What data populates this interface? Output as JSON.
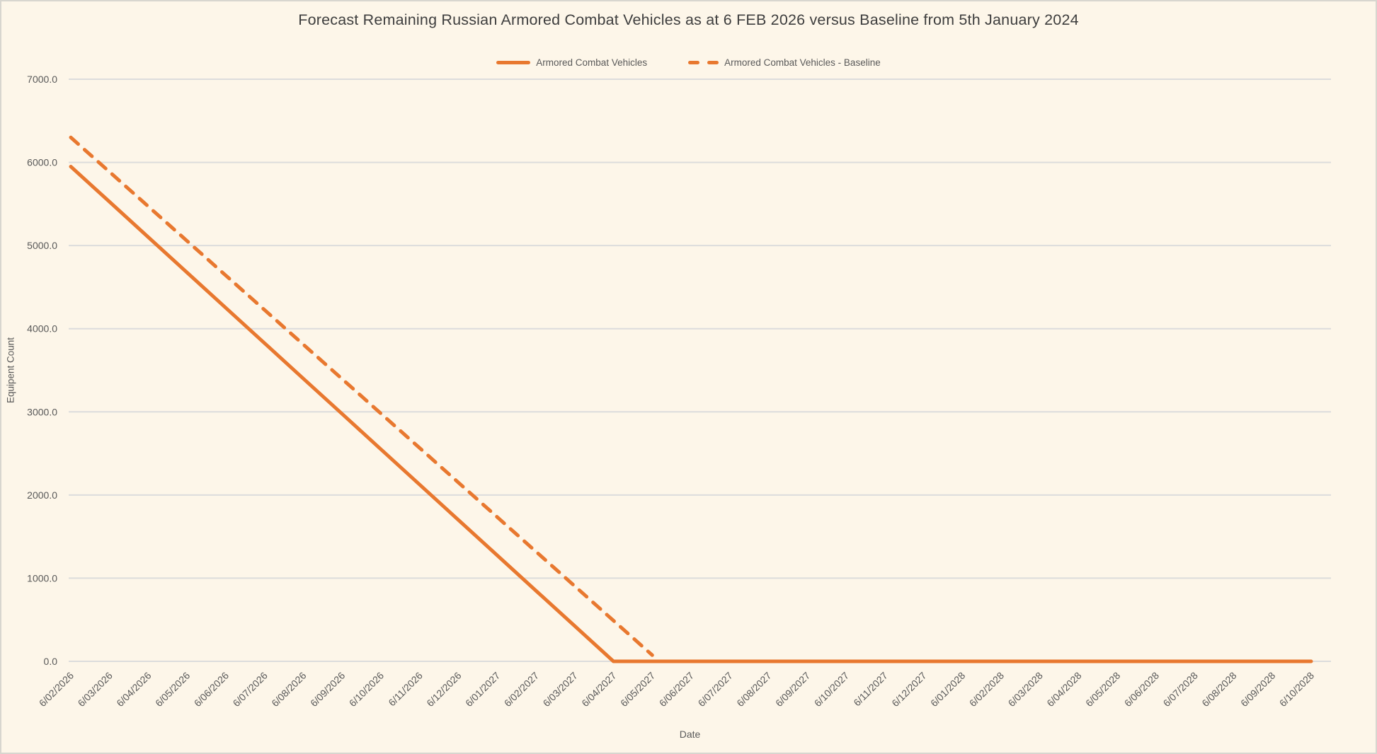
{
  "colors": {
    "background": "#FDF6E9",
    "canvas_border": "#D8D6CF",
    "gridline": "#DCDCDC",
    "axis_text": "#595959",
    "title_text": "#3E3E3E",
    "series_orange": "#E8782F"
  },
  "chart_data": {
    "type": "line",
    "title": "Forecast Remaining Russian Armored Combat Vehicles as at 6 FEB 2026 versus Baseline from 5th January 2024",
    "xlabel": "Date",
    "ylabel": "Equipent Count",
    "ylim": [
      0,
      7000
    ],
    "ytick_interval": 1000,
    "ytick_format": "0.0",
    "grid": "horizontal",
    "legend_position": "top-center",
    "x_tick_rotation": -45,
    "categories": [
      "6/02/2026",
      "6/03/2026",
      "6/04/2026",
      "6/05/2026",
      "6/06/2026",
      "6/07/2026",
      "6/08/2026",
      "6/09/2026",
      "6/10/2026",
      "6/11/2026",
      "6/12/2026",
      "6/01/2027",
      "6/02/2027",
      "6/03/2027",
      "6/04/2027",
      "6/05/2027",
      "6/06/2027",
      "6/07/2027",
      "6/08/2027",
      "6/09/2027",
      "6/10/2027",
      "6/11/2027",
      "6/12/2027",
      "6/01/2028",
      "6/02/2028",
      "6/03/2028",
      "6/04/2028",
      "6/05/2028",
      "6/06/2028",
      "6/07/2028",
      "6/08/2028",
      "6/09/2028",
      "6/10/2028"
    ],
    "series": [
      {
        "name": "Armored Combat Vehicles",
        "line_style": "solid",
        "color": "#E8782F",
        "values": [
          5950,
          5525,
          5100,
          4675,
          4250,
          3825,
          3400,
          2975,
          2550,
          2125,
          1700,
          1275,
          850,
          425,
          0,
          0,
          0,
          0,
          0,
          0,
          0,
          0,
          0,
          0,
          0,
          0,
          0,
          0,
          0,
          0,
          0,
          0,
          0
        ]
      },
      {
        "name": "Armored Combat Vehicles - Baseline",
        "line_style": "dashed",
        "color": "#E8782F",
        "values": [
          6300,
          5885,
          5470,
          5055,
          4640,
          4225,
          3810,
          3395,
          2980,
          2565,
          2150,
          1735,
          1320,
          905,
          490,
          75,
          null,
          null,
          null,
          null,
          null,
          null,
          null,
          null,
          null,
          null,
          null,
          null,
          null,
          null,
          null,
          null,
          null
        ]
      }
    ]
  }
}
